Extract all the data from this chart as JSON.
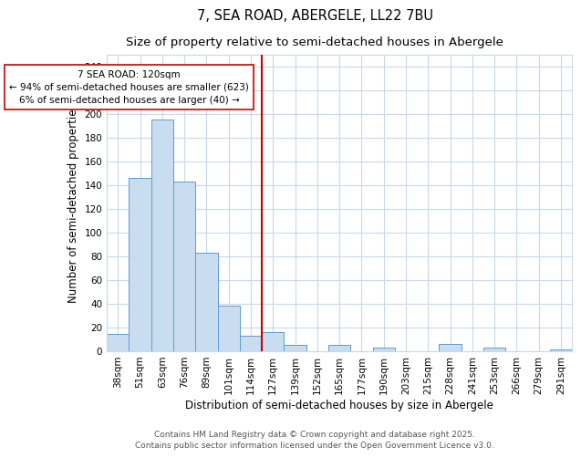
{
  "title": "7, SEA ROAD, ABERGELE, LL22 7BU",
  "subtitle": "Size of property relative to semi-detached houses in Abergele",
  "xlabel": "Distribution of semi-detached houses by size in Abergele",
  "ylabel": "Number of semi-detached properties",
  "bar_labels": [
    "38sqm",
    "51sqm",
    "63sqm",
    "76sqm",
    "89sqm",
    "101sqm",
    "114sqm",
    "127sqm",
    "139sqm",
    "152sqm",
    "165sqm",
    "177sqm",
    "190sqm",
    "203sqm",
    "215sqm",
    "228sqm",
    "241sqm",
    "253sqm",
    "266sqm",
    "279sqm",
    "291sqm"
  ],
  "bar_heights": [
    14,
    146,
    195,
    143,
    83,
    38,
    13,
    16,
    5,
    0,
    5,
    0,
    3,
    0,
    0,
    6,
    0,
    3,
    0,
    0,
    1
  ],
  "bar_color": "#c9ddf0",
  "bar_edge_color": "#5b9bd5",
  "vline_x": 6.5,
  "vline_color": "#cc0000",
  "annotation_title": "7 SEA ROAD: 120sqm",
  "annotation_line1": "← 94% of semi-detached houses are smaller (623)",
  "annotation_line2": "6% of semi-detached houses are larger (40) →",
  "annotation_box_color": "#ffffff",
  "annotation_box_edge": "#cc0000",
  "ylim": [
    0,
    250
  ],
  "yticks": [
    0,
    20,
    40,
    60,
    80,
    100,
    120,
    140,
    160,
    180,
    200,
    220,
    240
  ],
  "bg_color": "#ffffff",
  "grid_color": "#c8d8ec",
  "footer_line1": "Contains HM Land Registry data © Crown copyright and database right 2025.",
  "footer_line2": "Contains public sector information licensed under the Open Government Licence v3.0.",
  "title_fontsize": 10.5,
  "subtitle_fontsize": 9.5,
  "axis_label_fontsize": 8.5,
  "tick_fontsize": 7.5,
  "annotation_fontsize": 7.5,
  "footer_fontsize": 6.5
}
